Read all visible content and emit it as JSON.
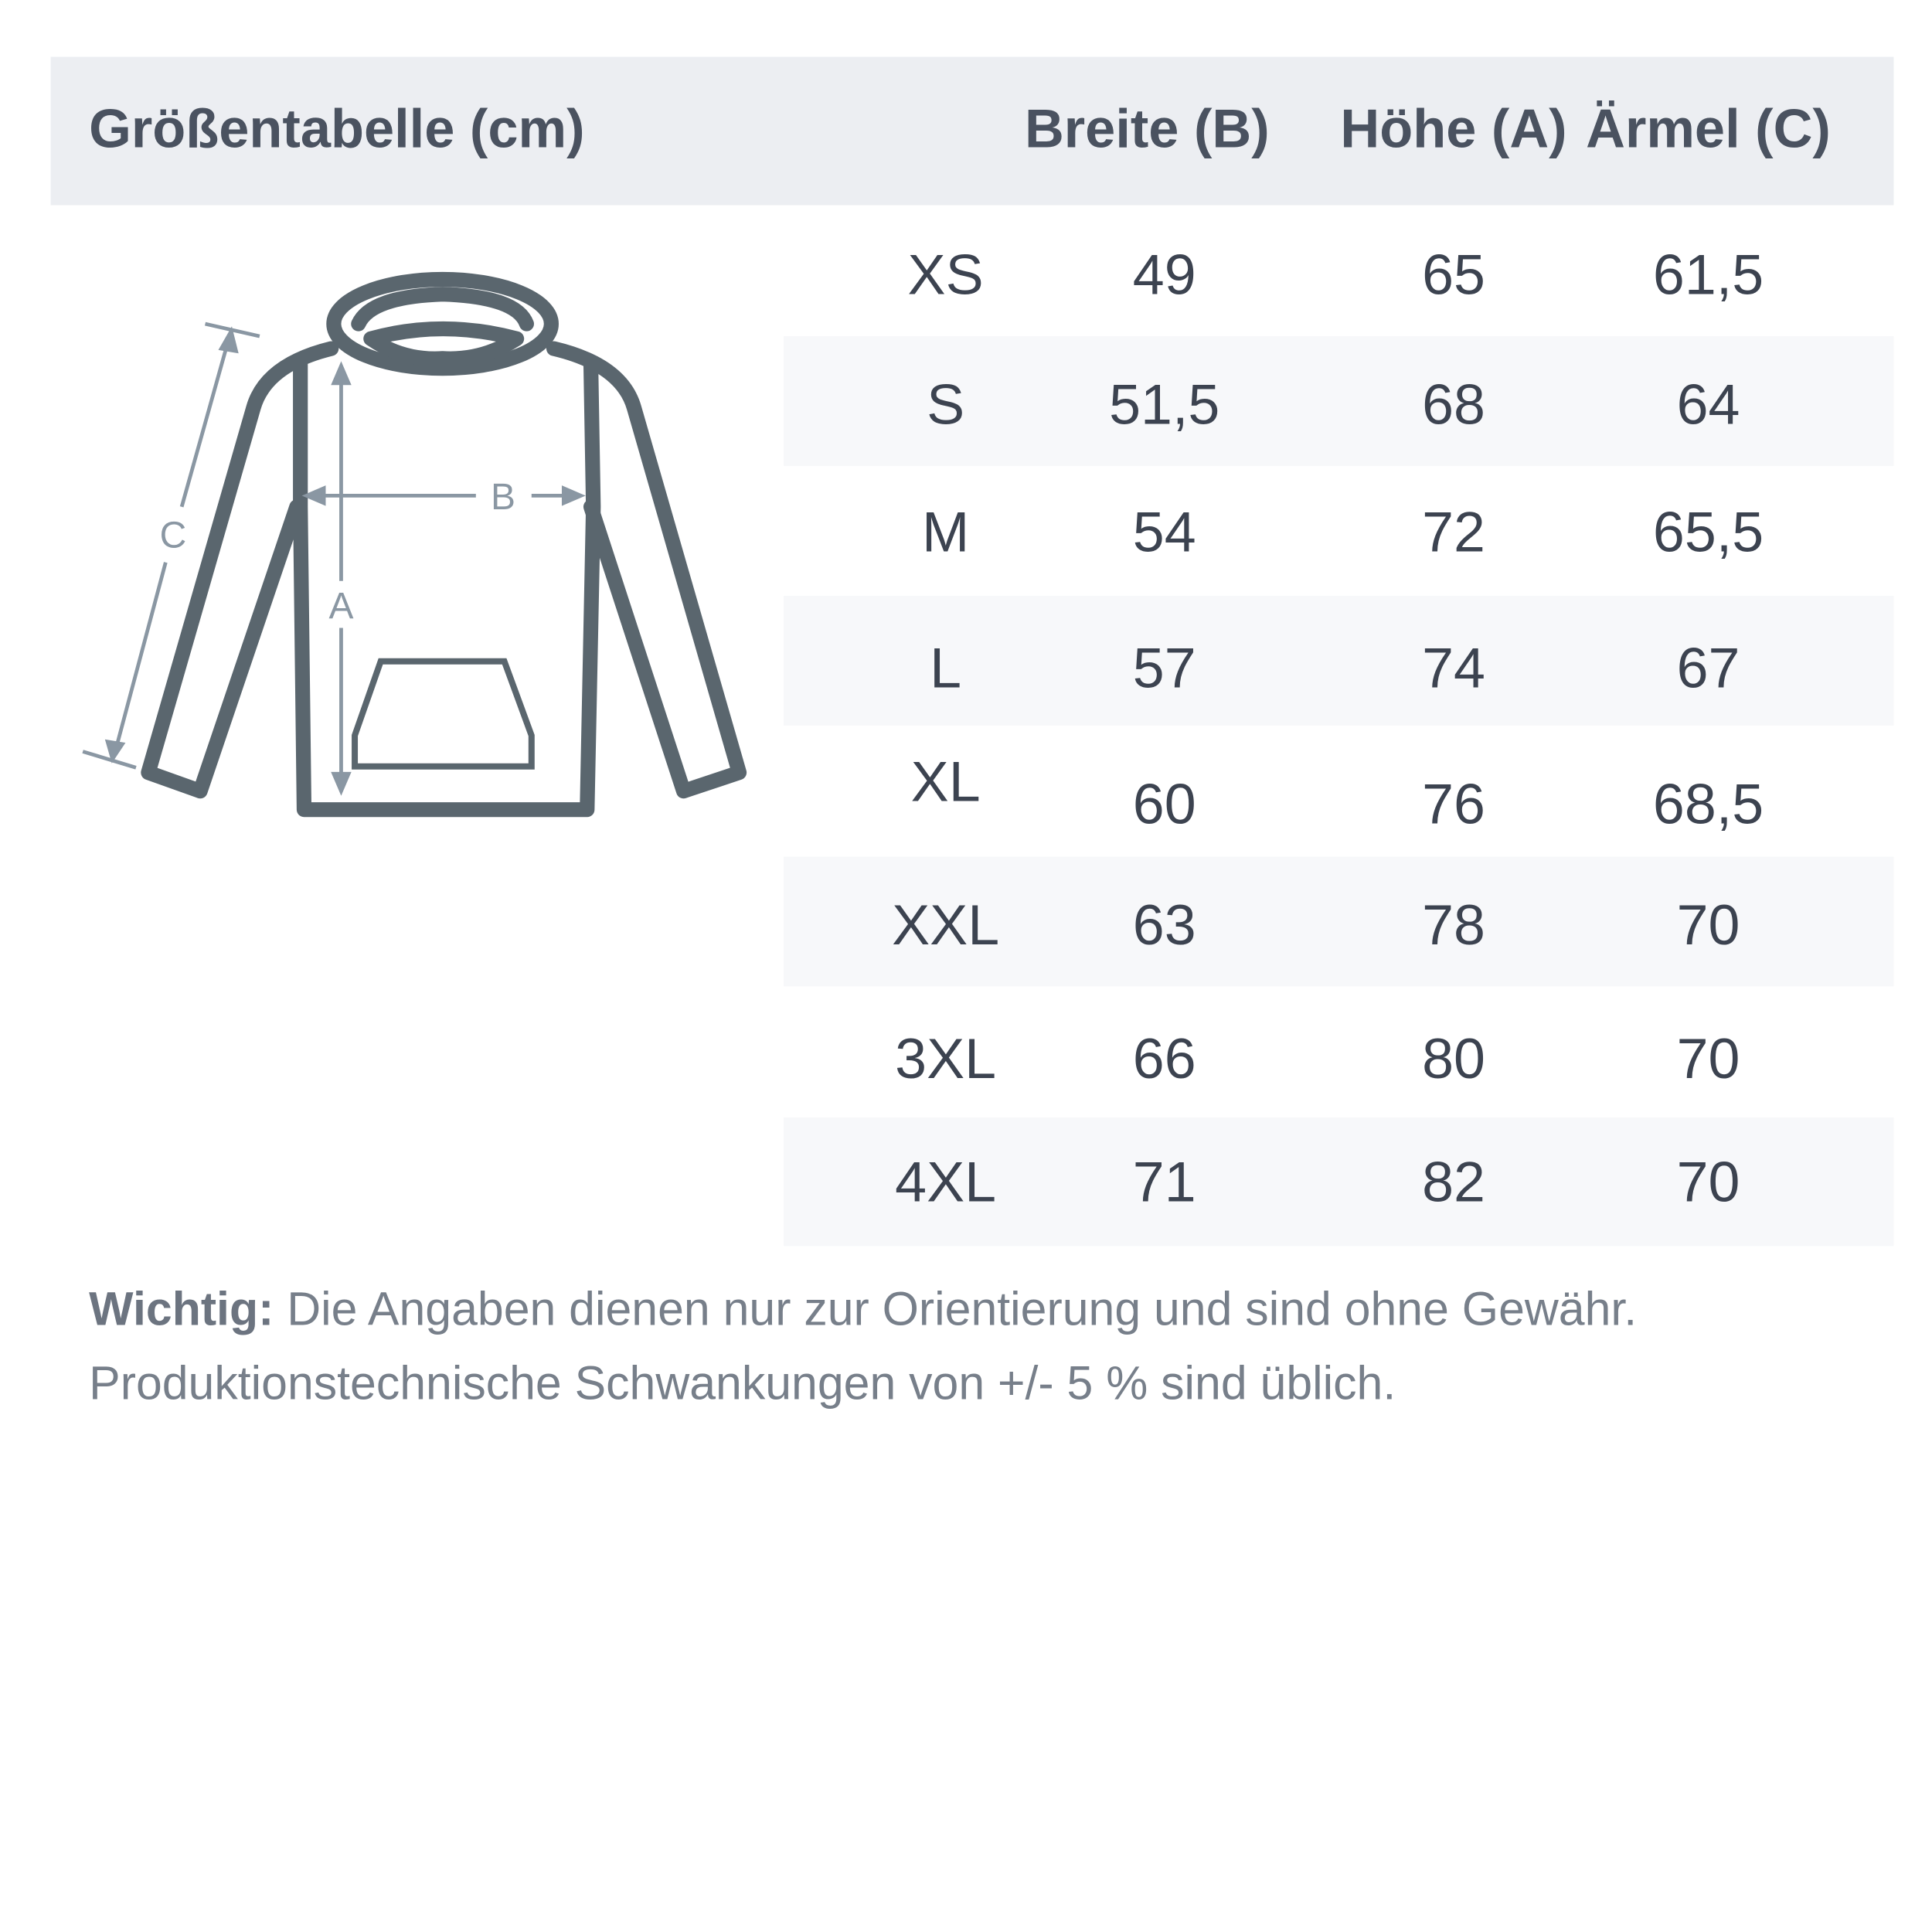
{
  "header": {
    "title": "Größentabelle (cm)",
    "columns": [
      "Breite (B)",
      "Höhe (A)",
      "Ärmel (C)"
    ]
  },
  "diagram": {
    "labels": {
      "a": "A",
      "b": "B",
      "c": "C"
    },
    "icon": "hoodie-measurement-diagram"
  },
  "rows": [
    {
      "size": "XS",
      "breite": "49",
      "hoehe": "65",
      "aermel": "61,5"
    },
    {
      "size": "S",
      "breite": "51,5",
      "hoehe": "68",
      "aermel": "64"
    },
    {
      "size": "M",
      "breite": "54",
      "hoehe": "72",
      "aermel": "65,5"
    },
    {
      "size": "L",
      "breite": "57",
      "hoehe": "74",
      "aermel": "67"
    },
    {
      "size": "XL",
      "breite": "60",
      "hoehe": "76",
      "aermel": "68,5"
    },
    {
      "size": "XXL",
      "breite": "63",
      "hoehe": "78",
      "aermel": "70"
    },
    {
      "size": "3XL",
      "breite": "66",
      "hoehe": "80",
      "aermel": "70"
    },
    {
      "size": "4XL",
      "breite": "71",
      "hoehe": "82",
      "aermel": "70"
    }
  ],
  "note": {
    "label": "Wichtig:",
    "line1": " Die Angaben dienen nur zur Orientierung und sind ohne Gewähr.",
    "line2": "Produktionstechnische Schwankungen von +/- 5 % sind üblich."
  },
  "colors": {
    "header_bg": "#eceef2",
    "stripe_bg": "#f7f8fa",
    "outline": "#5a666e",
    "arrows": "#8a97a3"
  }
}
